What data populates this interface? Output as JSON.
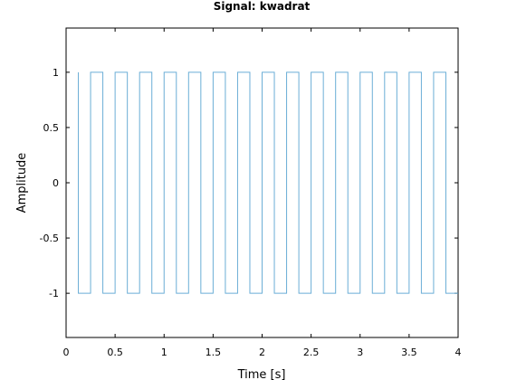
{
  "chart_data": {
    "type": "line",
    "title": "Signal: kwadrat",
    "xlabel": "Time [s]",
    "ylabel": "Amplitude",
    "xlim": [
      0,
      4
    ],
    "ylim": [
      -1.4,
      1.4
    ],
    "xticks": [
      0,
      0.5,
      1,
      1.5,
      2,
      2.5,
      3,
      3.5,
      4
    ],
    "xtick_labels": [
      "0",
      "0.5",
      "1",
      "1.5",
      "2",
      "2.5",
      "3",
      "3.5",
      "4"
    ],
    "yticks": [
      -1,
      -0.5,
      0,
      0.5,
      1
    ],
    "ytick_labels": [
      "-1",
      "-0.5",
      "0",
      "0.5",
      "1"
    ],
    "grid": false,
    "line_color": "#6baed6",
    "series": [
      {
        "x": [
          0.125,
          0.125,
          0.25,
          0.25,
          0.375,
          0.375,
          0.5,
          0.5,
          0.625,
          0.625,
          0.75,
          0.75,
          0.875,
          0.875,
          1.0,
          1.0,
          1.125,
          1.125,
          1.25,
          1.25,
          1.375,
          1.375,
          1.5,
          1.5,
          1.625,
          1.625,
          1.75,
          1.75,
          1.875,
          1.875,
          2.0,
          2.0,
          2.125,
          2.125,
          2.25,
          2.25,
          2.375,
          2.375,
          2.5,
          2.5,
          2.625,
          2.625,
          2.75,
          2.75,
          2.875,
          2.875,
          3.0,
          3.0,
          3.125,
          3.125,
          3.25,
          3.25,
          3.375,
          3.375,
          3.5,
          3.5,
          3.625,
          3.625,
          3.75,
          3.75,
          3.875,
          3.875,
          4.0
        ],
        "y": [
          1,
          -1,
          -1,
          1,
          1,
          -1,
          -1,
          1,
          1,
          -1,
          -1,
          1,
          1,
          -1,
          -1,
          1,
          1,
          -1,
          -1,
          1,
          1,
          -1,
          -1,
          1,
          1,
          -1,
          -1,
          1,
          1,
          -1,
          -1,
          1,
          1,
          -1,
          -1,
          1,
          1,
          -1,
          -1,
          1,
          1,
          -1,
          -1,
          1,
          1,
          -1,
          -1,
          1,
          1,
          -1,
          -1,
          1,
          1,
          -1,
          -1,
          1,
          1,
          -1,
          -1,
          1,
          1,
          -1,
          -1
        ]
      }
    ]
  }
}
